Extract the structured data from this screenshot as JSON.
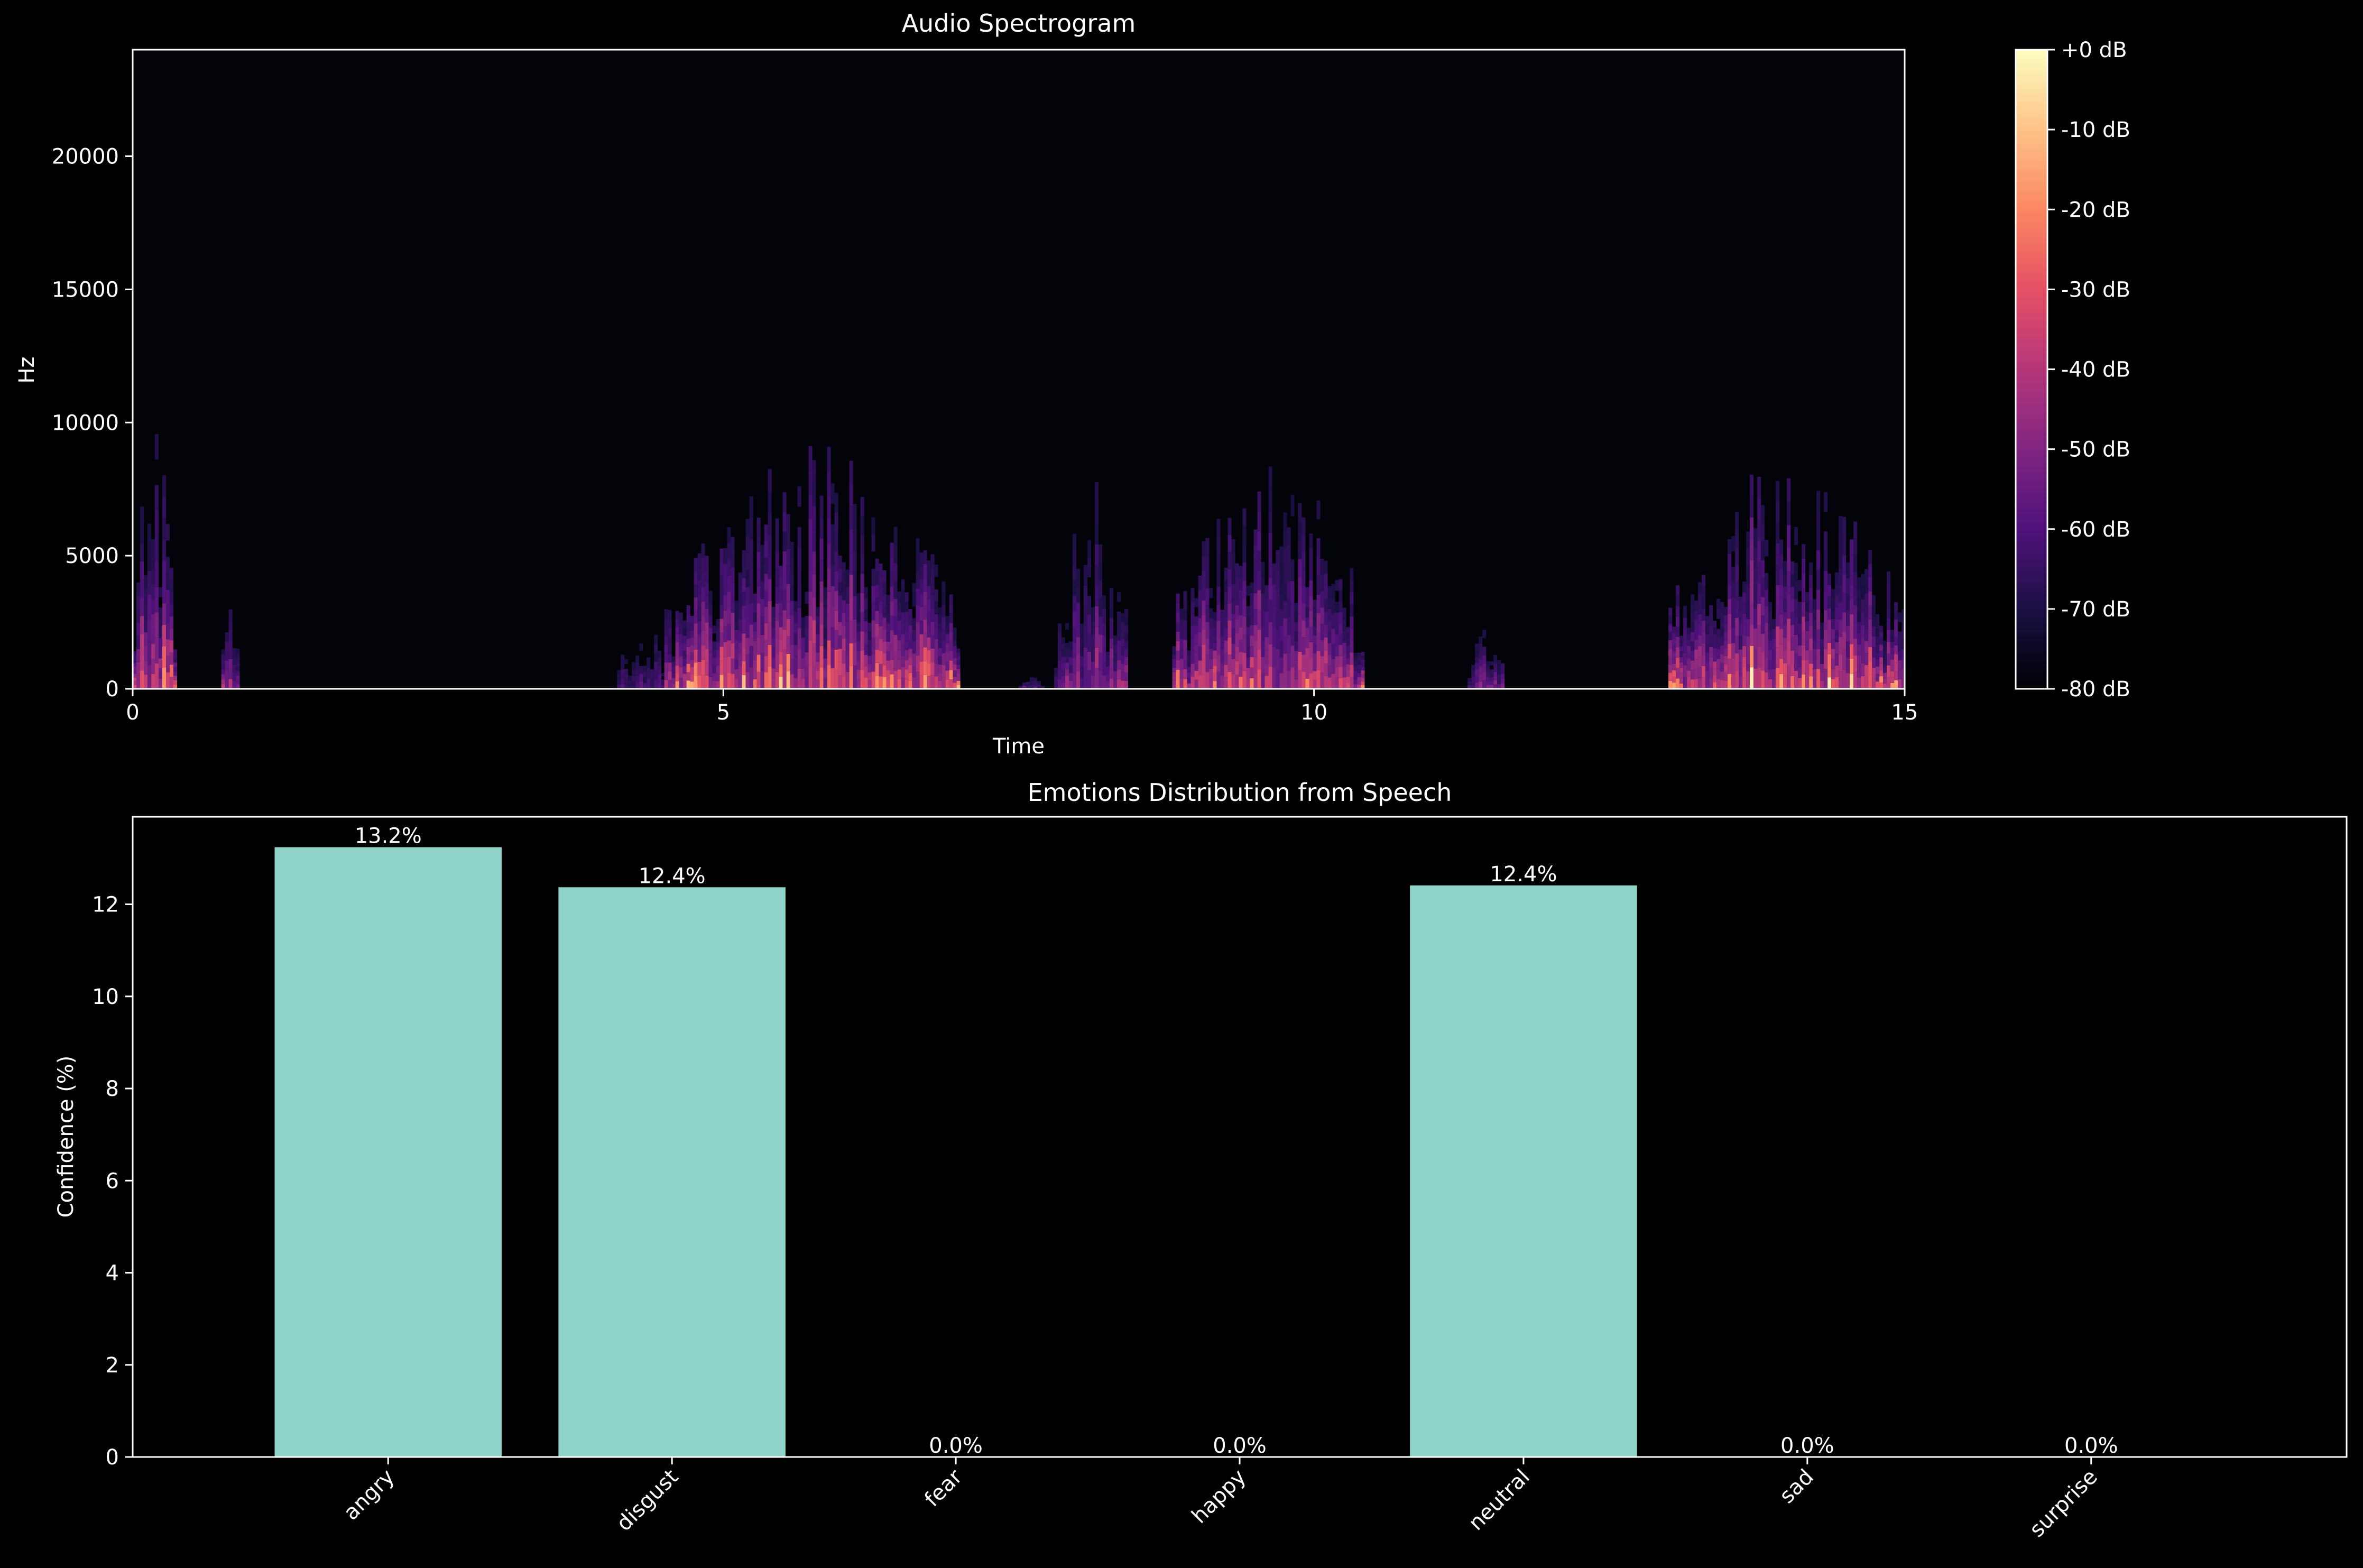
{
  "chart_data": [
    {
      "type": "heatmap",
      "title": "Audio Spectrogram",
      "xlabel": "Time",
      "ylabel": "Hz",
      "xlim": [
        0,
        15
      ],
      "ylim": [
        0,
        24000
      ],
      "x_ticks": [
        0,
        5,
        10,
        15
      ],
      "y_ticks": [
        0,
        5000,
        10000,
        15000,
        20000
      ],
      "colormap": "magma",
      "colorbar": {
        "range_db": [
          -80,
          0
        ],
        "tick_labels": [
          "+0 dB",
          "-10 dB",
          "-20 dB",
          "-30 dB",
          "-40 dB",
          "-50 dB",
          "-60 dB",
          "-70 dB",
          "-80 dB"
        ]
      },
      "energy_segments": [
        {
          "t_start": 0.0,
          "t_end": 0.35,
          "peak_hz": 10000,
          "level": 0.85
        },
        {
          "t_start": 0.75,
          "t_end": 0.9,
          "peak_hz": 5000,
          "level": 0.55
        },
        {
          "t_start": 4.1,
          "t_end": 4.5,
          "peak_hz": 4500,
          "level": 0.4
        },
        {
          "t_start": 4.5,
          "t_end": 7.0,
          "peak_hz": 9500,
          "level": 0.95
        },
        {
          "t_start": 7.5,
          "t_end": 7.7,
          "peak_hz": 1500,
          "level": 0.4
        },
        {
          "t_start": 7.8,
          "t_end": 8.4,
          "peak_hz": 8000,
          "level": 0.6
        },
        {
          "t_start": 8.8,
          "t_end": 10.4,
          "peak_hz": 9000,
          "level": 0.9
        },
        {
          "t_start": 11.3,
          "t_end": 11.6,
          "peak_hz": 4000,
          "level": 0.5
        },
        {
          "t_start": 13.0,
          "t_end": 15.0,
          "peak_hz": 9000,
          "level": 1.0
        }
      ]
    },
    {
      "type": "bar",
      "title": "Emotions Distribution from Speech",
      "xlabel": "",
      "ylabel": "Confidence (%)",
      "categories": [
        "angry",
        "disgust",
        "fear",
        "happy",
        "neutral",
        "sad",
        "surprise"
      ],
      "values": [
        13.24,
        12.37,
        0.0,
        0.0,
        12.41,
        0.0,
        0.0
      ],
      "data_labels": [
        "13.2%",
        "12.4%",
        "0.0%",
        "0.0%",
        "12.4%",
        "0.0%",
        "0.0%"
      ],
      "ylim": [
        0,
        13.9
      ],
      "y_ticks": [
        0,
        2,
        4,
        6,
        8,
        10,
        12
      ],
      "bar_color": "#8fd3c8"
    }
  ]
}
